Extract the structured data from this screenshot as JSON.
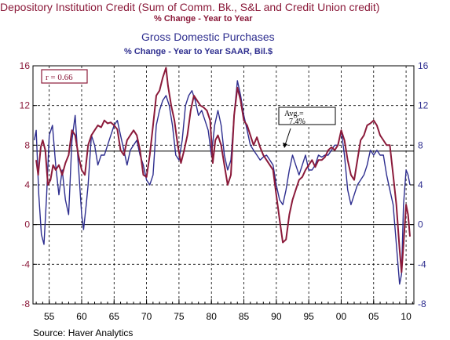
{
  "chart_data": {
    "type": "line",
    "title": "Depository Institution Credit (Sum of Comm. Bk., S&L and Credit Union credit)",
    "subtitle": "% Change -  Year to Year",
    "title2": "Gross Domestic Purchases",
    "subtitle2": "% Change - Year to Year     SAAR, Bil.$",
    "source": "Source:  Haver Analytics",
    "correlation": "r = 0.66",
    "average_label": "Avg.= 7.4%",
    "average_value": 7.4,
    "xlim": [
      1952.5,
      2011.2
    ],
    "x_ticks": [
      55,
      60,
      65,
      70,
      75,
      80,
      85,
      90,
      95,
      "00",
      "05",
      10
    ],
    "x_tick_values": [
      1955,
      1960,
      1965,
      1970,
      1975,
      1980,
      1985,
      1990,
      1995,
      2000,
      2005,
      2010
    ],
    "ylim": [
      -8,
      16
    ],
    "y_ticks": [
      -8,
      -4,
      0,
      4,
      8,
      12,
      16
    ],
    "grid": true,
    "colors": {
      "credit": "#8b1a3a",
      "gdp": "#2e2e8f"
    },
    "series": [
      {
        "name": "Depository Institution Credit",
        "axis": "left",
        "x": [
          1953,
          1953.3,
          1953.7,
          1954,
          1954.4,
          1954.8,
          1955.2,
          1955.6,
          1956,
          1956.5,
          1957,
          1957.5,
          1958,
          1958.5,
          1959,
          1959.5,
          1960,
          1960.5,
          1961,
          1961.5,
          1962,
          1962.5,
          1963,
          1963.5,
          1964,
          1964.5,
          1965,
          1965.5,
          1966,
          1966.5,
          1967,
          1967.5,
          1968,
          1968.5,
          1969,
          1969.5,
          1970,
          1970.5,
          1971,
          1971.5,
          1972,
          1972.5,
          1973,
          1973.3,
          1973.8,
          1974.3,
          1974.8,
          1975.3,
          1975.8,
          1976.3,
          1976.8,
          1977.3,
          1977.8,
          1978.3,
          1978.8,
          1979.3,
          1979.8,
          1980.2,
          1980.6,
          1981,
          1981.5,
          1982,
          1982.5,
          1983,
          1983.5,
          1984,
          1984.5,
          1985,
          1985.5,
          1986,
          1986.5,
          1987,
          1987.5,
          1988,
          1988.5,
          1989,
          1989.5,
          1990,
          1990.5,
          1991,
          1991.5,
          1992,
          1992.5,
          1993,
          1993.5,
          1994,
          1994.5,
          1995,
          1995.5,
          1996,
          1996.5,
          1997,
          1997.5,
          1998,
          1998.5,
          1999,
          1999.5,
          2000,
          2000.5,
          2001,
          2001.5,
          2002,
          2002.5,
          2003,
          2003.5,
          2004,
          2004.5,
          2005,
          2005.5,
          2006,
          2006.5,
          2007,
          2007.5,
          2008,
          2008.5,
          2009,
          2009.3,
          2009.6,
          2010,
          2010.3,
          2010.6
        ],
        "y": [
          6.5,
          5.0,
          7.8,
          8.5,
          7.5,
          4.0,
          4.5,
          6.0,
          5.5,
          6.0,
          5.0,
          6.2,
          7.0,
          9.5,
          9.0,
          7.0,
          5.5,
          5.0,
          8.0,
          9.0,
          9.5,
          10.0,
          9.8,
          10.5,
          10.2,
          10.3,
          10.0,
          9.6,
          7.5,
          7.0,
          8.5,
          9.0,
          9.5,
          9.0,
          7.5,
          5.0,
          4.8,
          7.0,
          10.0,
          13.0,
          13.5,
          14.8,
          15.8,
          14.0,
          12.0,
          10.5,
          8.0,
          6.2,
          7.5,
          9.0,
          11.5,
          13.0,
          12.5,
          12.0,
          11.8,
          11.5,
          10.5,
          6.2,
          8.5,
          9.0,
          8.0,
          6.0,
          4.0,
          5.0,
          11.0,
          13.8,
          12.5,
          10.5,
          10.0,
          9.0,
          8.0,
          8.8,
          7.8,
          7.0,
          6.5,
          6.0,
          5.5,
          3.0,
          0.5,
          -1.8,
          -1.5,
          1.0,
          2.5,
          3.5,
          4.5,
          4.8,
          5.5,
          6.0,
          6.5,
          5.8,
          6.5,
          6.5,
          6.8,
          7.5,
          7.8,
          7.5,
          8.0,
          9.5,
          8.5,
          6.5,
          5.0,
          4.5,
          6.5,
          8.5,
          9.0,
          10.0,
          10.2,
          10.5,
          10.0,
          9.0,
          8.5,
          8.0,
          8.0,
          5.0,
          2.0,
          -2.5,
          -4.8,
          -2.0,
          2.0,
          1.0,
          -1.2
        ]
      },
      {
        "name": "Gross Domestic Purchases",
        "axis": "right",
        "x": [
          1952.7,
          1953,
          1953.4,
          1953.8,
          1954.2,
          1954.6,
          1955,
          1955.5,
          1956,
          1956.5,
          1957,
          1957.5,
          1958,
          1958.5,
          1959,
          1959.5,
          1960,
          1960.3,
          1960.7,
          1961,
          1961.5,
          1962,
          1962.5,
          1963,
          1963.5,
          1964,
          1964.5,
          1965,
          1965.5,
          1966,
          1966.5,
          1967,
          1967.5,
          1968,
          1968.5,
          1969,
          1969.5,
          1970,
          1970.5,
          1971,
          1971.5,
          1972,
          1972.5,
          1973,
          1973.5,
          1974,
          1974.5,
          1975,
          1975.5,
          1976,
          1976.5,
          1977,
          1977.5,
          1978,
          1978.5,
          1979,
          1979.5,
          1980,
          1980.5,
          1981,
          1981.5,
          1982,
          1982.5,
          1983,
          1983.5,
          1984,
          1984.5,
          1985,
          1985.5,
          1986,
          1986.5,
          1987,
          1987.5,
          1988,
          1988.5,
          1989,
          1989.5,
          1990,
          1990.5,
          1991,
          1991.5,
          1992,
          1992.5,
          1993,
          1993.5,
          1994,
          1994.5,
          1995,
          1995.5,
          1996,
          1996.5,
          1997,
          1997.5,
          1998,
          1998.5,
          1999,
          1999.5,
          2000,
          2000.5,
          2001,
          2001.5,
          2002,
          2002.5,
          2003,
          2003.5,
          2004,
          2004.5,
          2005,
          2005.5,
          2006,
          2006.5,
          2007,
          2007.5,
          2008,
          2008.5,
          2009,
          2009.3,
          2009.6,
          2010,
          2010.3,
          2010.6
        ],
        "y": [
          8.5,
          9.5,
          3.0,
          -1.0,
          -2.0,
          3.0,
          9.0,
          10.0,
          6.0,
          3.0,
          5.5,
          2.5,
          1.0,
          8.5,
          11.0,
          6.0,
          1.0,
          -0.5,
          2.0,
          4.0,
          9.0,
          8.0,
          6.0,
          7.0,
          7.0,
          8.0,
          9.0,
          10.0,
          10.5,
          9.0,
          7.5,
          6.0,
          7.5,
          8.0,
          8.5,
          7.0,
          6.0,
          4.5,
          4.0,
          5.0,
          10.0,
          11.5,
          12.5,
          13.0,
          12.0,
          10.0,
          7.0,
          6.5,
          8.5,
          12.0,
          13.0,
          13.5,
          12.5,
          11.0,
          11.5,
          10.5,
          9.5,
          7.0,
          10.0,
          11.5,
          10.0,
          7.0,
          5.5,
          6.5,
          11.0,
          14.5,
          13.0,
          11.0,
          9.5,
          8.0,
          7.5,
          7.0,
          6.5,
          6.8,
          7.0,
          6.5,
          6.0,
          4.0,
          2.5,
          2.0,
          3.5,
          5.5,
          7.0,
          6.0,
          5.0,
          6.0,
          7.0,
          5.5,
          5.5,
          6.0,
          7.0,
          6.8,
          7.0,
          7.0,
          7.5,
          8.0,
          8.0,
          9.5,
          7.0,
          3.5,
          2.0,
          3.0,
          4.0,
          4.5,
          5.0,
          6.0,
          7.5,
          7.0,
          7.5,
          7.0,
          7.0,
          5.0,
          3.5,
          2.0,
          -2.0,
          -6.0,
          -5.0,
          2.0,
          5.5,
          5.0,
          4.0
        ]
      }
    ]
  }
}
